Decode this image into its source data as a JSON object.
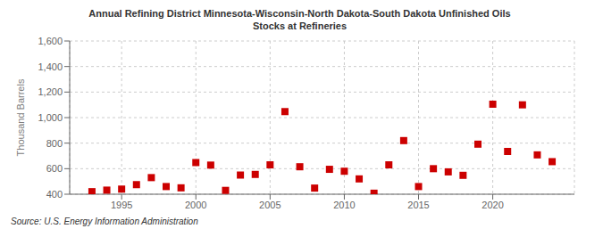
{
  "chart_data": {
    "type": "scatter",
    "title": "Annual Refining District Minnesota-Wisconsin-North Dakota-South Dakota Unfinished Oils",
    "subtitle": "Stocks at Refineries",
    "y_label": "Thousand Barrels",
    "source": "Source: U.S. Energy Information Administration",
    "x": [
      1993,
      1994,
      1995,
      1996,
      1997,
      1998,
      1999,
      2000,
      2001,
      2002,
      2003,
      2004,
      2005,
      2006,
      2007,
      2008,
      2009,
      2010,
      2011,
      2012,
      2013,
      2014,
      2015,
      2016,
      2017,
      2018,
      2019,
      2020,
      2021,
      2022,
      2023,
      2024
    ],
    "values": [
      420,
      432,
      440,
      475,
      530,
      460,
      450,
      648,
      628,
      430,
      550,
      555,
      630,
      1047,
      615,
      448,
      595,
      580,
      520,
      408,
      630,
      820,
      460,
      600,
      575,
      548,
      792,
      1105,
      735,
      1100,
      708,
      655
    ],
    "color": "#cc0000",
    "marker": "square",
    "xlim": [
      1991.5,
      2025.5
    ],
    "xticks": [
      1995,
      2000,
      2005,
      2010,
      2015,
      2020
    ],
    "ylim": [
      400,
      1600
    ],
    "yticks": [
      400,
      600,
      {
        "value": 800,
        "label": "800"
      },
      {
        "value": 1000,
        "label": "1,000"
      },
      {
        "value": 1200,
        "label": "1,200"
      },
      {
        "value": 1400,
        "label": "1,400"
      },
      {
        "value": 1600,
        "label": "1,600"
      }
    ],
    "grid": true
  }
}
